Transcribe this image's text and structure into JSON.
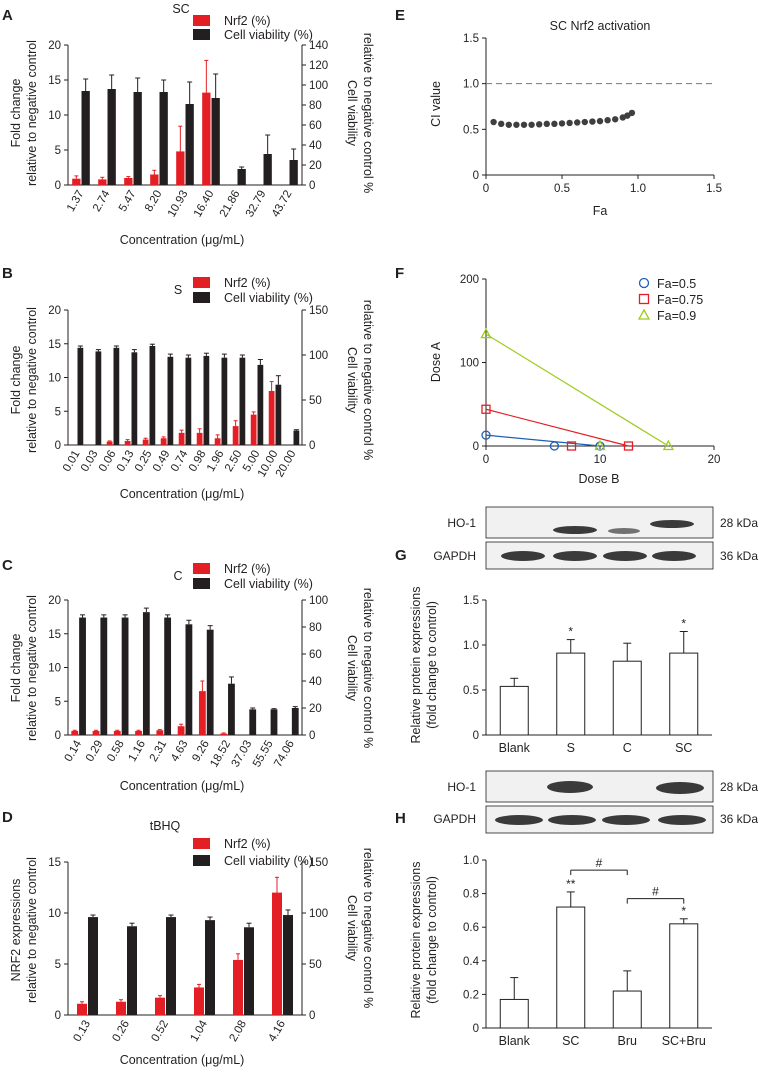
{
  "colors": {
    "nrf2": "#e31e24",
    "viability": "#231f20",
    "axis": "#231f20",
    "blot_bg": "#f1f1f1",
    "blot_band": "#3a3a3a",
    "ci_points": "#3f3f3f",
    "fa05": "#1f5fb4",
    "fa075": "#e31e24",
    "fa09": "#9ccc1d"
  },
  "chart_data": [
    {
      "id": "A",
      "type": "bar",
      "title": "SC",
      "legend": [
        "Nrf2 (%)",
        "Cell viability (%)"
      ],
      "xlabel": "Concentration (μg/mL)",
      "ylabel": [
        "Fold change",
        "relative to negative control"
      ],
      "y2label": [
        "Cell viability",
        "relative to negative control %"
      ],
      "ylim": [
        0,
        20
      ],
      "y2lim": [
        0,
        140
      ],
      "yticks": [
        "0",
        "5",
        "10",
        "15",
        "20"
      ],
      "y2ticks": [
        "0",
        "20",
        "40",
        "60",
        "80",
        "100",
        "120",
        "140"
      ],
      "categories": [
        "1.37",
        "2.74",
        "5.47",
        "8.20",
        "10.93",
        "16.40",
        "21.86",
        "32.79",
        "43.72"
      ],
      "series": [
        {
          "name": "Nrf2 (%)",
          "axis": "left",
          "values": [
            0.9,
            0.8,
            1.0,
            1.5,
            4.8,
            13.2,
            null,
            null,
            null
          ],
          "errors": [
            0.4,
            0.3,
            0.2,
            0.6,
            3.6,
            4.6,
            null,
            null,
            null
          ]
        },
        {
          "name": "Cell viability (%)",
          "axis": "right",
          "values": [
            94,
            96,
            93,
            93,
            81,
            87,
            16,
            31,
            25
          ],
          "errors": [
            12,
            14,
            14,
            12,
            22,
            24,
            2,
            19,
            11
          ]
        }
      ]
    },
    {
      "id": "B",
      "type": "bar",
      "title": "S",
      "legend": [
        "Nrf2 (%)",
        "Cell viability (%)"
      ],
      "xlabel": "Concentration (μg/mL)",
      "ylabel": [
        "Fold change",
        "relative to negative control"
      ],
      "y2label": [
        "Cell viability",
        "relative to negative control %"
      ],
      "ylim": [
        0,
        20
      ],
      "y2lim": [
        0,
        150
      ],
      "yticks": [
        "0",
        "5",
        "10",
        "15",
        "20"
      ],
      "y2ticks": [
        "0",
        "50",
        "100",
        "150"
      ],
      "categories": [
        "0.01",
        "0.03",
        "0.06",
        "0.13",
        "0.25",
        "0.49",
        "0.74",
        "0.98",
        "1.96",
        "2.50",
        "5.00",
        "10.00",
        "20.00"
      ],
      "series": [
        {
          "name": "Nrf2 (%)",
          "axis": "left",
          "values": [
            null,
            null,
            0.5,
            0.6,
            0.8,
            1.0,
            1.8,
            1.8,
            1.0,
            2.8,
            4.5,
            8.0,
            null
          ],
          "errors": [
            null,
            null,
            0.1,
            0.2,
            0.2,
            0.2,
            0.4,
            0.6,
            0.5,
            0.8,
            0.4,
            1.4,
            null
          ]
        },
        {
          "name": "Cell viability (%)",
          "axis": "right",
          "values": [
            108,
            104,
            108,
            103,
            110,
            98,
            97,
            99,
            97,
            97,
            89,
            67,
            16
          ],
          "errors": [
            2,
            2,
            2,
            3,
            2,
            3,
            3,
            3,
            4,
            3,
            6,
            10,
            1
          ]
        }
      ]
    },
    {
      "id": "C",
      "type": "bar",
      "title": "C",
      "legend": [
        "Nrf2 (%)",
        "Cell viability (%)"
      ],
      "xlabel": "Concentration (μg/mL)",
      "ylabel": [
        "Fold change",
        "relative to negative control"
      ],
      "y2label": [
        "Cell viability",
        "relative to negative control %"
      ],
      "ylim": [
        0,
        20
      ],
      "y2lim": [
        0,
        100
      ],
      "yticks": [
        "0",
        "5",
        "10",
        "15",
        "20"
      ],
      "y2ticks": [
        "0",
        "20",
        "40",
        "60",
        "80",
        "100"
      ],
      "categories": [
        "0.14",
        "0.29",
        "0.58",
        "1.16",
        "2.31",
        "4.63",
        "9.26",
        "18.52",
        "37.03",
        "55.55",
        "74.06"
      ],
      "series": [
        {
          "name": "Nrf2 (%)",
          "axis": "left",
          "values": [
            0.6,
            0.6,
            0.6,
            0.6,
            0.7,
            1.3,
            6.5,
            0.2,
            null,
            null,
            null
          ],
          "errors": [
            0.1,
            0.1,
            0.1,
            0.1,
            0.1,
            0.3,
            1.5,
            0.1,
            null,
            null,
            null
          ]
        },
        {
          "name": "Cell viability (%)",
          "axis": "right",
          "values": [
            87,
            87,
            87,
            91,
            87,
            82,
            78,
            38,
            19,
            19,
            20
          ],
          "errors": [
            2,
            2,
            2,
            3,
            2,
            3,
            3,
            5,
            1,
            0.5,
            1
          ]
        }
      ]
    },
    {
      "id": "D",
      "type": "bar",
      "title": "tBHQ",
      "legend": [
        "Nrf2 (%)",
        "Cell viability (%)"
      ],
      "xlabel": "Concentration (μg/mL)",
      "ylabel": [
        "NRF2 expressions",
        "relative to negative control"
      ],
      "y2label": [
        "Cell viability",
        "relative to negative control %"
      ],
      "ylim": [
        0,
        15
      ],
      "y2lim": [
        0,
        150
      ],
      "yticks": [
        "0",
        "5",
        "10",
        "15"
      ],
      "y2ticks": [
        "0",
        "50",
        "100",
        "150"
      ],
      "categories": [
        "0.13",
        "0.26",
        "0.52",
        "1.04",
        "2.08",
        "4.16"
      ],
      "series": [
        {
          "name": "Nrf2 (%)",
          "axis": "left",
          "values": [
            1.1,
            1.3,
            1.7,
            2.7,
            5.4,
            12.0
          ],
          "errors": [
            0.2,
            0.2,
            0.2,
            0.3,
            0.6,
            1.5
          ]
        },
        {
          "name": "Cell viability (%)",
          "axis": "right",
          "values": [
            96,
            87,
            96,
            93,
            86,
            98
          ],
          "errors": [
            2,
            3,
            2,
            3,
            4,
            5
          ]
        }
      ]
    },
    {
      "id": "E",
      "type": "scatter",
      "title": "SC Nrf2 activation",
      "xlabel": "Fa",
      "ylabel": "CI value",
      "xlim": [
        0,
        1.5
      ],
      "ylim": [
        0,
        1.5
      ],
      "xticks": [
        "0",
        "0.5",
        "1.0",
        "1.5"
      ],
      "yticks": [
        "0",
        "0.5",
        "1.0",
        "1.5"
      ],
      "reference_line": 1.0,
      "x": [
        0.05,
        0.1,
        0.15,
        0.2,
        0.25,
        0.3,
        0.35,
        0.4,
        0.45,
        0.5,
        0.55,
        0.6,
        0.65,
        0.7,
        0.75,
        0.8,
        0.85,
        0.9,
        0.93,
        0.96
      ],
      "y": [
        0.58,
        0.56,
        0.55,
        0.55,
        0.55,
        0.55,
        0.555,
        0.56,
        0.56,
        0.565,
        0.57,
        0.575,
        0.58,
        0.585,
        0.59,
        0.6,
        0.61,
        0.63,
        0.65,
        0.68
      ]
    },
    {
      "id": "F",
      "type": "line",
      "title": "",
      "xlabel": "Dose B",
      "ylabel": "Dose A",
      "xlim": [
        0,
        20
      ],
      "ylim": [
        0,
        200
      ],
      "xticks": [
        "0",
        "10",
        "20"
      ],
      "yticks": [
        "0",
        "100",
        "200"
      ],
      "series": [
        {
          "name": "Fa=0.5",
          "marker": "circle",
          "a_intercept": 13,
          "b_intercept": 10,
          "extra_b": 6
        },
        {
          "name": "Fa=0.75",
          "marker": "square",
          "a_intercept": 44,
          "b_intercept": 12.5,
          "extra_b": 7.5
        },
        {
          "name": "Fa=0.9",
          "marker": "triangle",
          "a_intercept": 134,
          "b_intercept": 16,
          "extra_b": 10
        }
      ]
    },
    {
      "id": "G",
      "type": "bar",
      "blot": {
        "labels": [
          "HO-1",
          "GAPDH"
        ],
        "sizes": [
          "28 kDa",
          "36 kDa"
        ]
      },
      "ylabel": [
        "Relative protein expressions",
        "(fold change to control)"
      ],
      "ylim": [
        0,
        1.5
      ],
      "yticks": [
        "0",
        "0.5",
        "1.0",
        "1.5"
      ],
      "categories": [
        "Blank",
        "S",
        "C",
        "SC"
      ],
      "values": [
        0.54,
        0.91,
        0.82,
        0.91
      ],
      "errors": [
        0.09,
        0.15,
        0.2,
        0.24
      ],
      "significance": [
        "",
        "*",
        "",
        "*"
      ]
    },
    {
      "id": "H",
      "type": "bar",
      "blot": {
        "labels": [
          "HO-1",
          "GAPDH"
        ],
        "sizes": [
          "28 kDa",
          "36 kDa"
        ]
      },
      "ylabel": [
        "Relative protein expressions",
        "(fold change to control)"
      ],
      "ylim": [
        0,
        1.0
      ],
      "yticks": [
        "0",
        "0.2",
        "0.4",
        "0.6",
        "0.8",
        "1.0"
      ],
      "categories": [
        "Blank",
        "SC",
        "Bru",
        "SC+Bru"
      ],
      "values": [
        0.17,
        0.72,
        0.22,
        0.62
      ],
      "errors": [
        0.13,
        0.09,
        0.12,
        0.03
      ],
      "significance": [
        "",
        "**",
        "",
        "*"
      ],
      "brackets": [
        "#",
        "#"
      ]
    }
  ]
}
